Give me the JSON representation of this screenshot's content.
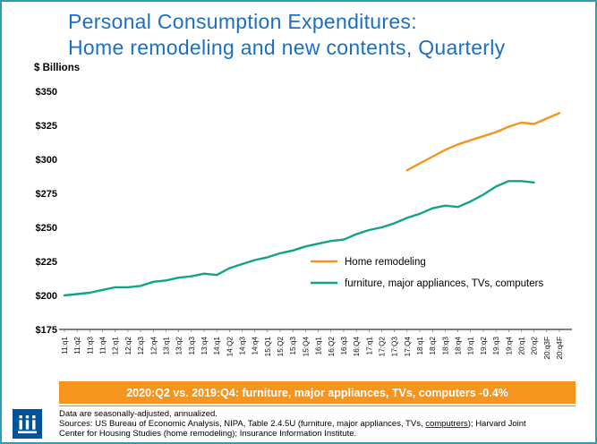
{
  "header": {
    "title_line1": "Personal Consumption Expenditures:",
    "title_line2": "Home remodeling and new contents, Quarterly"
  },
  "chart_data": {
    "type": "line",
    "title": "Personal Consumption Expenditures: Home remodeling and new contents, Quarterly",
    "ylabel": "$ Billions",
    "xlabel": "",
    "ylim": [
      175,
      350
    ],
    "ytick_step": 25,
    "ytick_prefix": "$",
    "grid": false,
    "legend_position": "inside-right",
    "categories": [
      "11:q1",
      "11:q2",
      "11:q3",
      "11:q4",
      "12:q1",
      "12:q2",
      "12:q3",
      "12:q4",
      "13:q1",
      "13:q2",
      "13:q3",
      "13:q4",
      "14:q1",
      "14:Q2",
      "14:q3",
      "14:q4",
      "15:Q1",
      "15:Q2",
      "15:q3",
      "15:Q4",
      "16:q1",
      "16:Q2",
      "16:q3",
      "16:Q4",
      "17:q1",
      "17:Q2",
      "17:Q3",
      "17:Q4",
      "18:q1",
      "18:q2",
      "18:q3",
      "18:q4",
      "19:q1",
      "19:q2",
      "19:q3",
      "19:q4",
      "20:q1",
      "20:q2",
      "20:q3F",
      "20:q4F"
    ],
    "series": [
      {
        "name": "Home remodeling",
        "color": "#F7941D",
        "start_index": 27,
        "values": [
          292,
          297,
          302,
          307,
          311,
          314,
          317,
          320,
          324,
          327,
          326,
          330,
          334
        ]
      },
      {
        "name": "furniture, major appliances, TVs, computers",
        "color": "#12A28B",
        "start_index": 0,
        "values": [
          200,
          201,
          202,
          204,
          206,
          206,
          207,
          210,
          211,
          213,
          214,
          216,
          215,
          220,
          223,
          226,
          228,
          231,
          233,
          236,
          238,
          240,
          241,
          245,
          248,
          250,
          253,
          257,
          260,
          264,
          266,
          265,
          269,
          274,
          280,
          284,
          284,
          283
        ]
      }
    ]
  },
  "banner": {
    "text": "2020:Q2 vs. 2019:Q4: furniture, major appliances, TVs, computers -0.4%",
    "bg": "#F7941D"
  },
  "footer": {
    "note": "Data are seasonally-adjusted, annualized.",
    "sources_part1": "Sources: US Bureau of Economic Analysis, NIPA, Table 2.4.5U (furniture, major appliances, TVs, ",
    "sources_misspelled": "computrers",
    "sources_part2": "); Harvard Joint Center for Housing Studies (home remodeling); Insurance Information Institute."
  },
  "logo": {
    "name": "Insurance Information Institute"
  },
  "colors": {
    "accent_blue": "#1B6FC4",
    "border_teal": "#2E9FAE",
    "banner_orange": "#F7941D",
    "line_orange": "#F7941D",
    "line_teal": "#12A28B",
    "logo_blue": "#00529B"
  }
}
